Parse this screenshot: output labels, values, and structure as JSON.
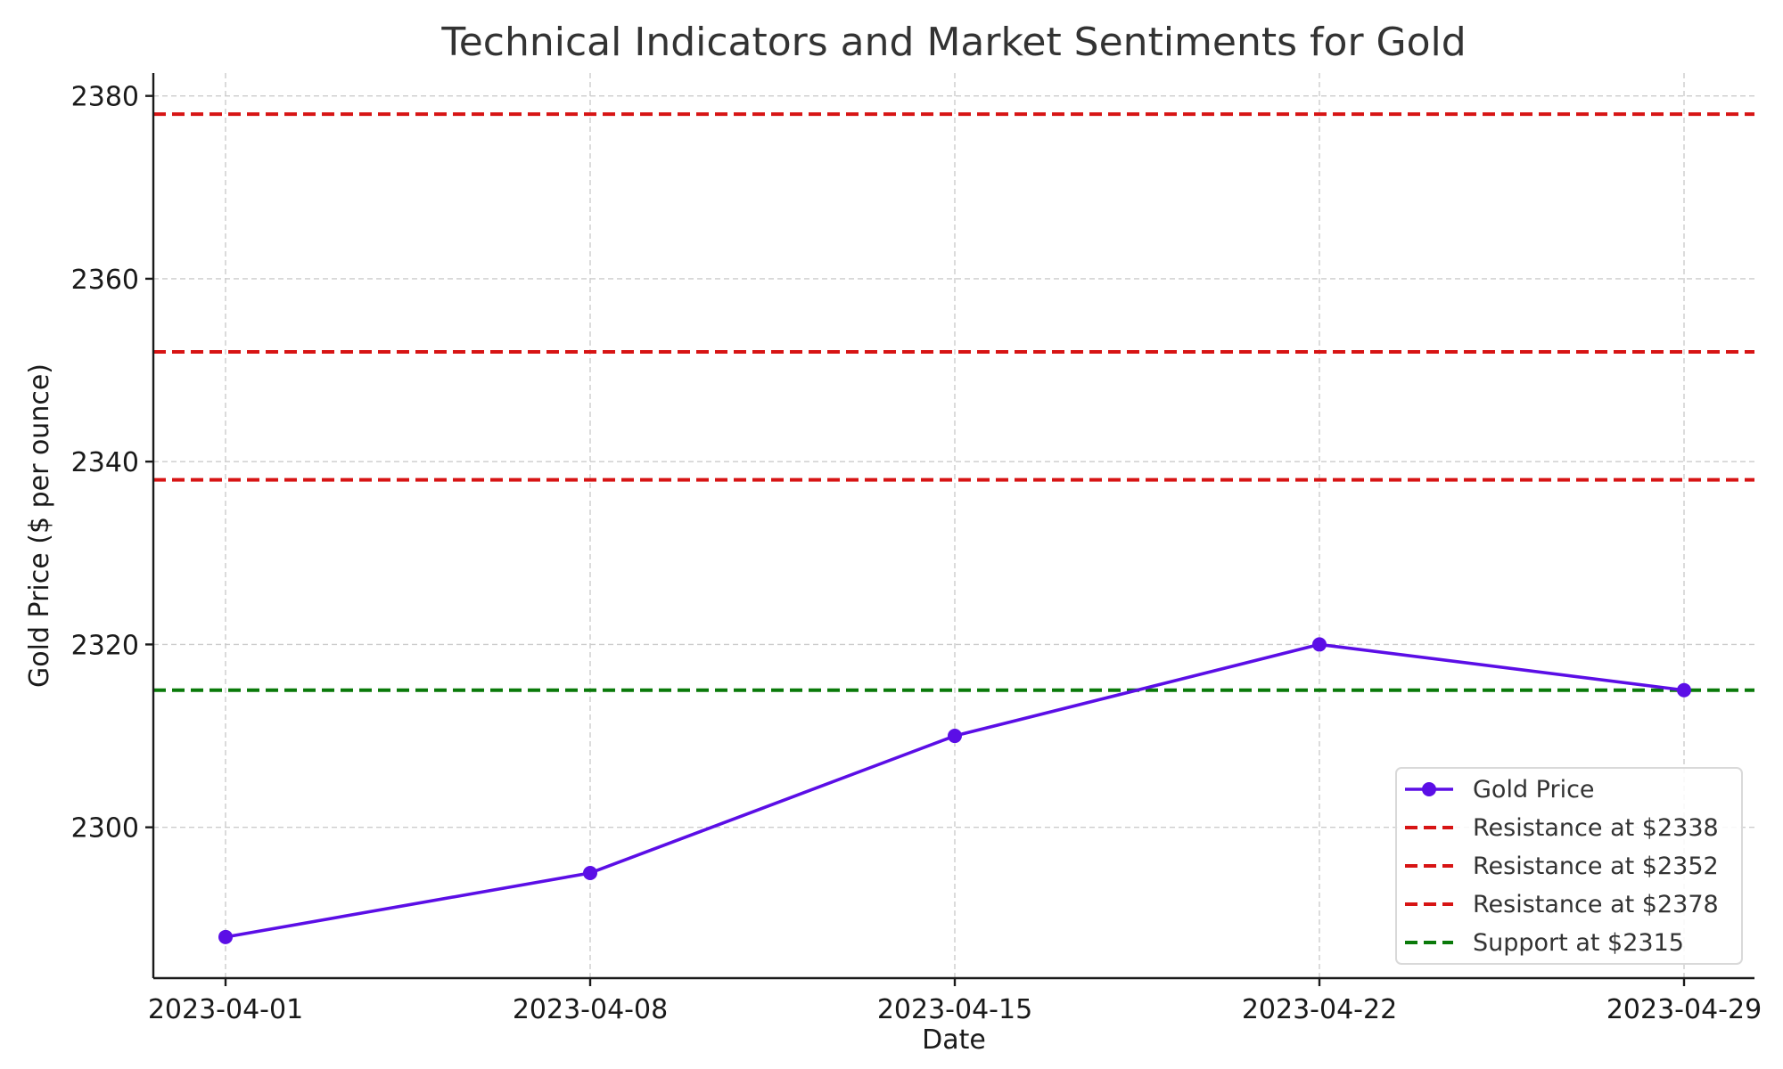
{
  "chart_data": {
    "type": "line",
    "title": "Technical Indicators and Market Sentiments for Gold",
    "xlabel": "Date",
    "ylabel": "Gold Price ($ per ounce)",
    "x": [
      "2023-04-01",
      "2023-04-08",
      "2023-04-15",
      "2023-04-22",
      "2023-04-29"
    ],
    "x_ticks": [
      "2023-04-01",
      "2023-04-08",
      "2023-04-15",
      "2023-04-22",
      "2023-04-29"
    ],
    "y_ticks": [
      2300,
      2320,
      2340,
      2360,
      2380
    ],
    "ylim": [
      2283.5,
      2382.5
    ],
    "grid": true,
    "legend_position": "lower-right",
    "series": [
      {
        "name": "Gold Price",
        "values": [
          2288,
          2295,
          2310,
          2320,
          2315
        ],
        "color": "#5b0ee6",
        "marker": "circle"
      }
    ],
    "horizontal_lines": [
      {
        "name": "Resistance at $2338",
        "value": 2338,
        "color": "#d71414",
        "style": "dashed"
      },
      {
        "name": "Resistance at $2352",
        "value": 2352,
        "color": "#d71414",
        "style": "dashed"
      },
      {
        "name": "Resistance at $2378",
        "value": 2378,
        "color": "#d71414",
        "style": "dashed"
      },
      {
        "name": "Support at $2315",
        "value": 2315,
        "color": "#0a7a0a",
        "style": "dashed"
      }
    ]
  }
}
